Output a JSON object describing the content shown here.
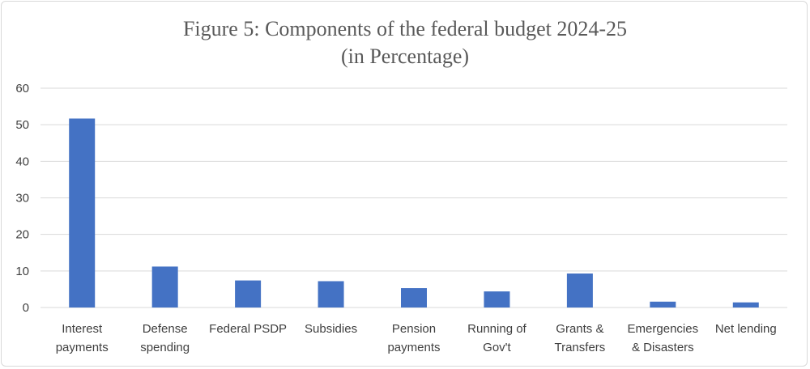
{
  "chart_data": {
    "type": "bar",
    "title": [
      "Figure 5: Components of  the federal budget 2024-25",
      "(in Percentage)"
    ],
    "xlabel": "",
    "ylabel": "",
    "ylim": [
      0,
      60
    ],
    "yticks": [
      0,
      10,
      20,
      30,
      40,
      50,
      60
    ],
    "grid": true,
    "legend": "none",
    "bar_color": "#4472c4",
    "categories": [
      [
        "Interest",
        "payments"
      ],
      [
        "Defense",
        "spending"
      ],
      [
        "Federal PSDP"
      ],
      [
        "Subsidies"
      ],
      [
        "Pension",
        "payments"
      ],
      [
        "Running of",
        "Gov't"
      ],
      [
        "Grants &",
        "Transfers"
      ],
      [
        "Emergencies",
        "& Disasters"
      ],
      [
        "Net lending"
      ]
    ],
    "values": [
      51.7,
      11.2,
      7.4,
      7.2,
      5.3,
      4.4,
      9.3,
      1.6,
      1.4
    ]
  }
}
